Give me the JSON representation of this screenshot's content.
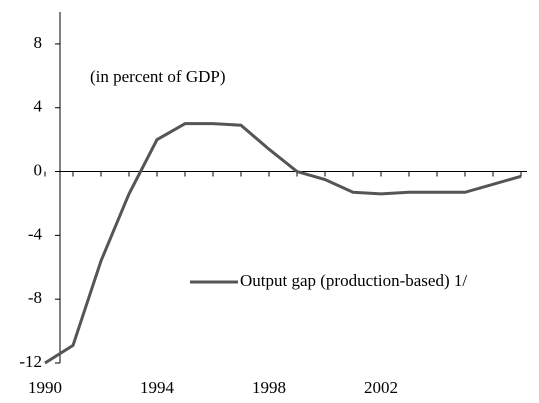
{
  "chart_data": {
    "type": "line",
    "annotation": "(in percent of GDP)",
    "categories": [
      "1990",
      null,
      null,
      null,
      "1994",
      null,
      null,
      null,
      "1998",
      null,
      null,
      null,
      "2002",
      null,
      null,
      null,
      null,
      null
    ],
    "series": [
      {
        "name": "Output gap (production-based) 1/",
        "color": "#555555",
        "values": [
          -12,
          -10.9,
          -5.6,
          -1.4,
          2,
          3,
          3,
          2.9,
          1.4,
          0,
          -0.5,
          -1.3,
          -1.4,
          -1.3,
          -1.3,
          -1.3,
          -0.8,
          -0.3
        ]
      }
    ],
    "ylim": [
      -12,
      10
    ],
    "yticks": [
      -12,
      -8,
      -4,
      0,
      4,
      8
    ]
  }
}
